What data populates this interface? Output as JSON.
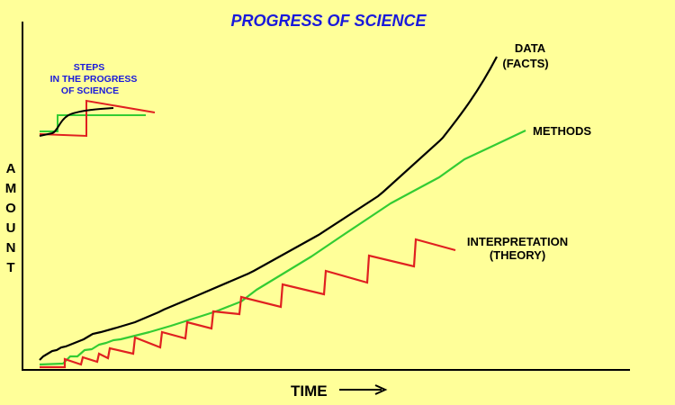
{
  "title": "PROGRESS OF SCIENCE",
  "inset": {
    "line1": "STEPS",
    "line2": "IN THE PROGRESS",
    "line3": "OF SCIENCE"
  },
  "labels": {
    "data_line1": "DATA",
    "data_line2": "(FACTS)",
    "methods": "METHODS",
    "interp_line1": "INTERPRETATION",
    "interp_line2": "(THEORY)"
  },
  "axis": {
    "x_label": "TIME",
    "y_letters": [
      "A",
      "M",
      "O",
      "U",
      "N",
      "T"
    ]
  },
  "colors": {
    "background": "#ffff99",
    "title": "#1a1adb",
    "data": "#000000",
    "methods": "#33cc33",
    "interpretation": "#e02020"
  }
}
